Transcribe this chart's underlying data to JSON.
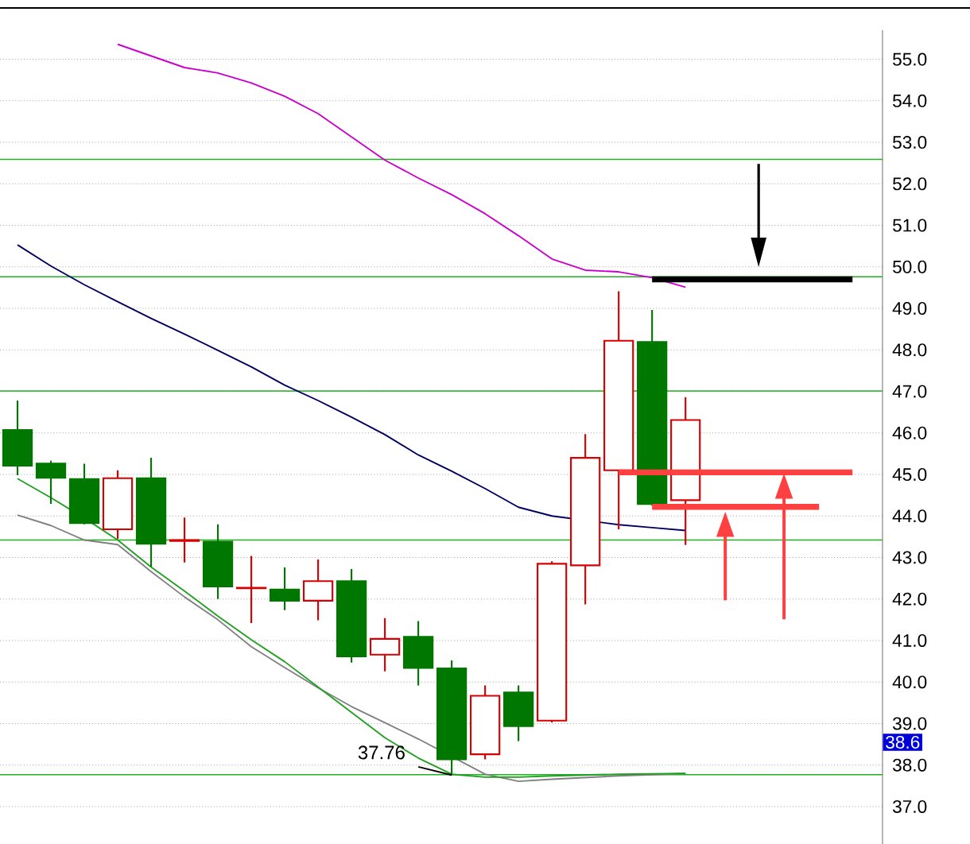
{
  "chart_data": {
    "type": "candlestick",
    "categories": [
      null,
      null,
      null,
      null,
      null,
      null,
      null,
      null,
      null,
      null,
      null,
      null,
      null,
      null,
      null,
      null,
      null,
      null,
      null,
      null,
      null,
      null,
      null,
      null,
      null,
      null
    ],
    "ohlc": [
      [
        46.07,
        46.78,
        44.98,
        45.21
      ],
      [
        45.26,
        45.33,
        44.29,
        44.92
      ],
      [
        44.89,
        45.26,
        43.8,
        43.83
      ],
      [
        43.68,
        45.1,
        43.45,
        44.91
      ],
      [
        44.91,
        45.4,
        42.78,
        43.33
      ],
      [
        43.42,
        43.96,
        42.88,
        43.4
      ],
      [
        43.38,
        43.8,
        42.0,
        42.3
      ],
      [
        42.27,
        43.04,
        41.42,
        42.26
      ],
      [
        42.23,
        42.76,
        41.73,
        41.96
      ],
      [
        41.96,
        42.95,
        41.49,
        42.43
      ],
      [
        42.43,
        42.72,
        40.47,
        40.62
      ],
      [
        40.66,
        41.54,
        40.26,
        41.04
      ],
      [
        41.09,
        41.47,
        39.92,
        40.34
      ],
      [
        40.33,
        40.52,
        37.76,
        38.14
      ],
      [
        38.26,
        39.92,
        38.14,
        39.67
      ],
      [
        39.75,
        39.92,
        38.58,
        38.94
      ],
      [
        39.07,
        42.91,
        39.03,
        42.85
      ],
      [
        42.81,
        45.97,
        41.87,
        45.4
      ],
      [
        45.1,
        49.41,
        43.68,
        48.22
      ],
      [
        48.19,
        48.96,
        44.25,
        44.29
      ],
      [
        44.38,
        46.86,
        43.3,
        46.31
      ],
      null,
      null,
      null,
      null,
      null
    ],
    "colors": [
      "#007800",
      "#007800",
      "#007800",
      "#d80000",
      "#007800",
      "#d80000",
      "#007800",
      "#d80000",
      "#007800",
      "#d80000",
      "#007800",
      "#d80000",
      "#007800",
      "#007800",
      "#d80000",
      "#007800",
      "#d80000",
      "#d80000",
      "#d80000",
      "#007800",
      "#d80000",
      null,
      null,
      null,
      null,
      null
    ],
    "series": [
      {
        "type": "line",
        "color": "#cc00cc",
        "values": [
          null,
          null,
          null,
          55.36,
          55.08,
          54.8,
          54.67,
          54.43,
          54.11,
          53.69,
          53.13,
          52.57,
          52.14,
          51.74,
          51.28,
          50.75,
          50.19,
          49.92,
          49.88,
          49.74,
          49.51,
          null,
          null,
          null,
          null,
          null
        ]
      },
      {
        "type": "line",
        "color": "#000060",
        "values": [
          50.53,
          50.02,
          49.57,
          49.16,
          48.76,
          48.38,
          47.99,
          47.59,
          47.15,
          46.78,
          46.38,
          45.96,
          45.47,
          45.08,
          44.66,
          44.21,
          44.0,
          null,
          43.79,
          43.72,
          43.65,
          null,
          null,
          null,
          null,
          null
        ]
      },
      {
        "type": "line",
        "color": "#808080",
        "values": [
          44.02,
          43.77,
          43.42,
          43.31,
          42.66,
          42.05,
          41.5,
          40.85,
          40.35,
          39.86,
          39.41,
          39.02,
          38.63,
          null,
          37.78,
          37.61,
          37.66,
          37.7,
          37.74,
          37.77,
          37.8,
          null,
          null,
          null,
          null,
          null
        ]
      },
      {
        "type": "line",
        "color": "#20a020",
        "values": [
          44.9,
          44.44,
          43.95,
          43.42,
          42.77,
          42.19,
          41.59,
          41.02,
          40.49,
          39.88,
          39.27,
          38.66,
          38.17,
          37.78,
          37.71,
          37.71,
          37.74,
          37.76,
          37.78,
          37.79,
          37.8,
          null,
          null,
          null,
          null,
          null
        ]
      },
      {
        "type": "line",
        "color": "#000000",
        "values": [
          null,
          null,
          null,
          null,
          null,
          null,
          null,
          null,
          null,
          null,
          null,
          null,
          null,
          null,
          null,
          null,
          null,
          null,
          null,
          49.7,
          49.7,
          49.7,
          49.7,
          49.7,
          49.7,
          49.7
        ]
      },
      {
        "type": "line",
        "color": "#ff4040",
        "values": [
          null,
          null,
          null,
          null,
          null,
          null,
          null,
          null,
          null,
          null,
          null,
          null,
          null,
          null,
          null,
          null,
          null,
          null,
          45.05,
          45.05,
          45.05,
          45.05,
          45.05,
          45.05,
          45.05,
          45.05
        ]
      },
      {
        "type": "line",
        "color": "#ff4040",
        "values": [
          null,
          null,
          null,
          null,
          null,
          null,
          null,
          null,
          null,
          null,
          null,
          null,
          null,
          null,
          null,
          null,
          null,
          null,
          null,
          44.22,
          44.22,
          44.22,
          44.22,
          44.22,
          44.22,
          null
        ]
      }
    ],
    "ylim": [
      36.1,
      55.7
    ],
    "yticks": [
      {
        "value": 37,
        "label": "37.0"
      },
      {
        "value": 38,
        "label": "38.0"
      },
      {
        "value": 39,
        "label": "39.0"
      },
      {
        "value": 40,
        "label": "40.0"
      },
      {
        "value": 41,
        "label": "41.0"
      },
      {
        "value": 42,
        "label": "42.0"
      },
      {
        "value": 43,
        "label": "43.0"
      },
      {
        "value": 44,
        "label": "44.0"
      },
      {
        "value": 45,
        "label": "45.0"
      },
      {
        "value": 46,
        "label": "46.0"
      },
      {
        "value": 47,
        "label": "47.0"
      },
      {
        "value": 48,
        "label": "48.0"
      },
      {
        "value": 49,
        "label": "49.0"
      },
      {
        "value": 50,
        "label": "50.0"
      },
      {
        "value": 51,
        "label": "51.0"
      },
      {
        "value": 52,
        "label": "52.0"
      },
      {
        "value": 53,
        "label": "53.0"
      },
      {
        "value": 54,
        "label": "54.0"
      },
      {
        "value": 55,
        "label": "55.0"
      }
    ],
    "grid": "y",
    "tick_labels": "y",
    "ref_lines": [
      {
        "axis": "y",
        "value": 52.59,
        "color": "#20b020"
      },
      {
        "axis": "y",
        "value": 49.76,
        "color": "#20b020"
      },
      {
        "axis": "y",
        "value": 47.01,
        "color": "#20b020"
      },
      {
        "axis": "y",
        "value": 43.42,
        "color": "#20b020"
      },
      {
        "axis": "y",
        "value": 37.77,
        "color": "#20b020"
      }
    ],
    "annotations": [
      {
        "text": "37.76",
        "y": 37.76
      },
      "38.6"
    ]
  }
}
